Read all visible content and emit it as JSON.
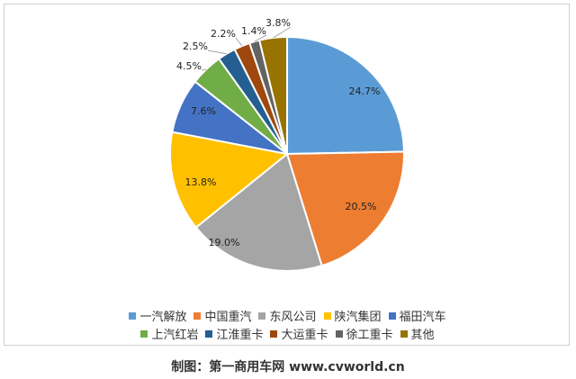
{
  "chart_data": {
    "type": "pie",
    "slices": [
      {
        "label": "一汽解放",
        "value": 24.7,
        "display": "24.7%",
        "color": "#5b9bd5"
      },
      {
        "label": "中国重汽",
        "value": 20.5,
        "display": "20.5%",
        "color": "#ed7d31"
      },
      {
        "label": "东风公司",
        "value": 19.0,
        "display": "19.0%",
        "color": "#a5a5a5"
      },
      {
        "label": "陕汽集团",
        "value": 13.8,
        "display": "13.8%",
        "color": "#ffc000"
      },
      {
        "label": "福田汽车",
        "value": 7.6,
        "display": "7.6%",
        "color": "#4472c4"
      },
      {
        "label": "上汽红岩",
        "value": 4.5,
        "display": "4.5%",
        "color": "#70ad47"
      },
      {
        "label": "江淮重卡",
        "value": 2.5,
        "display": "2.5%",
        "color": "#255e91"
      },
      {
        "label": "大运重卡",
        "value": 2.2,
        "display": "2.2%",
        "color": "#9e480e"
      },
      {
        "label": "徐工重卡",
        "value": 1.4,
        "display": "1.4%",
        "color": "#636363"
      },
      {
        "label": "其他",
        "value": 3.8,
        "display": "3.8%",
        "color": "#997300"
      }
    ],
    "legend_position": "bottom"
  },
  "caption": "制图：第一商用车网 www.cvworld.cn"
}
